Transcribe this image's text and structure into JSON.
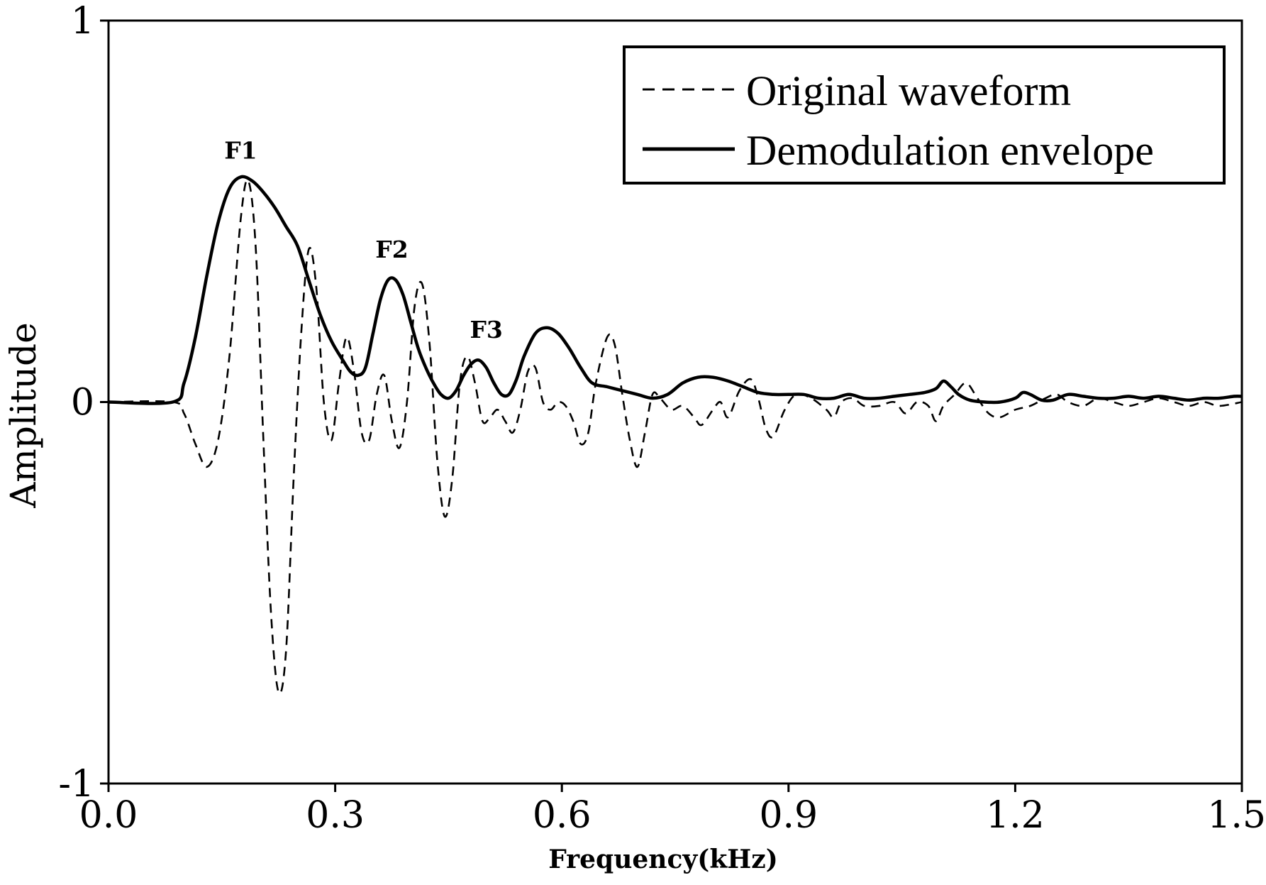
{
  "chart_data": {
    "type": "line",
    "title": "",
    "xlabel": "Frequency(kHz)",
    "ylabel": "Amplitude",
    "xlim": [
      0.0,
      1.5
    ],
    "ylim": [
      -1,
      1
    ],
    "xticks": [
      0.0,
      0.3,
      0.6,
      0.9,
      1.2,
      1.5
    ],
    "xtick_labels": [
      "0.0",
      "0.3",
      "0.6",
      "0.9",
      "1.2",
      "1.5"
    ],
    "yticks": [
      -1,
      0,
      1
    ],
    "ytick_labels": [
      "-1",
      "0",
      "1"
    ],
    "grid": false,
    "legend_position": "top-right",
    "series": [
      {
        "name": "Original waveform",
        "style": "dashed",
        "color": "#000000",
        "points": [
          [
            0.0,
            0
          ],
          [
            0.085,
            0
          ],
          [
            0.1,
            -0.03
          ],
          [
            0.115,
            -0.11
          ],
          [
            0.13,
            -0.17
          ],
          [
            0.145,
            -0.1
          ],
          [
            0.16,
            0.12
          ],
          [
            0.175,
            0.48
          ],
          [
            0.185,
            0.58
          ],
          [
            0.195,
            0.4
          ],
          [
            0.205,
            -0.1
          ],
          [
            0.215,
            -0.55
          ],
          [
            0.225,
            -0.76
          ],
          [
            0.235,
            -0.65
          ],
          [
            0.245,
            -0.2
          ],
          [
            0.255,
            0.18
          ],
          [
            0.265,
            0.4
          ],
          [
            0.275,
            0.3
          ],
          [
            0.285,
            0.0
          ],
          [
            0.295,
            -0.1
          ],
          [
            0.305,
            0.05
          ],
          [
            0.315,
            0.17
          ],
          [
            0.325,
            0.08
          ],
          [
            0.335,
            -0.08
          ],
          [
            0.345,
            -0.1
          ],
          [
            0.355,
            0.02
          ],
          [
            0.365,
            0.07
          ],
          [
            0.375,
            -0.05
          ],
          [
            0.385,
            -0.12
          ],
          [
            0.395,
            0.0
          ],
          [
            0.405,
            0.25
          ],
          [
            0.415,
            0.31
          ],
          [
            0.425,
            0.15
          ],
          [
            0.435,
            -0.15
          ],
          [
            0.445,
            -0.3
          ],
          [
            0.455,
            -0.2
          ],
          [
            0.465,
            0.05
          ],
          [
            0.475,
            0.12
          ],
          [
            0.485,
            0.05
          ],
          [
            0.495,
            -0.05
          ],
          [
            0.505,
            -0.04
          ],
          [
            0.515,
            -0.02
          ],
          [
            0.525,
            -0.05
          ],
          [
            0.535,
            -0.08
          ],
          [
            0.545,
            -0.02
          ],
          [
            0.555,
            0.08
          ],
          [
            0.565,
            0.09
          ],
          [
            0.575,
            0.0
          ],
          [
            0.585,
            -0.02
          ],
          [
            0.595,
            0.0
          ],
          [
            0.605,
            -0.01
          ],
          [
            0.615,
            -0.05
          ],
          [
            0.625,
            -0.11
          ],
          [
            0.635,
            -0.08
          ],
          [
            0.645,
            0.05
          ],
          [
            0.66,
            0.17
          ],
          [
            0.67,
            0.15
          ],
          [
            0.68,
            0.02
          ],
          [
            0.69,
            -0.1
          ],
          [
            0.7,
            -0.17
          ],
          [
            0.71,
            -0.08
          ],
          [
            0.72,
            0.02
          ],
          [
            0.73,
            0.01
          ],
          [
            0.745,
            -0.02
          ],
          [
            0.76,
            -0.01
          ],
          [
            0.775,
            -0.04
          ],
          [
            0.785,
            -0.06
          ],
          [
            0.8,
            -0.02
          ],
          [
            0.81,
            0.0
          ],
          [
            0.82,
            -0.04
          ],
          [
            0.835,
            0.03
          ],
          [
            0.85,
            0.06
          ],
          [
            0.86,
            0.01
          ],
          [
            0.87,
            -0.07
          ],
          [
            0.88,
            -0.09
          ],
          [
            0.895,
            -0.02
          ],
          [
            0.91,
            0.02
          ],
          [
            0.93,
            0.01
          ],
          [
            0.95,
            -0.02
          ],
          [
            0.96,
            -0.04
          ],
          [
            0.97,
            0.0
          ],
          [
            0.985,
            0.01
          ],
          [
            1.0,
            -0.01
          ],
          [
            1.02,
            -0.01
          ],
          [
            1.04,
            0.0
          ],
          [
            1.055,
            -0.03
          ],
          [
            1.07,
            0.0
          ],
          [
            1.085,
            -0.01
          ],
          [
            1.095,
            -0.05
          ],
          [
            1.105,
            -0.01
          ],
          [
            1.12,
            0.02
          ],
          [
            1.135,
            0.05
          ],
          [
            1.15,
            0.01
          ],
          [
            1.165,
            -0.03
          ],
          [
            1.18,
            -0.04
          ],
          [
            1.2,
            -0.02
          ],
          [
            1.22,
            -0.01
          ],
          [
            1.24,
            0.01
          ],
          [
            1.255,
            0.02
          ],
          [
            1.27,
            0.0
          ],
          [
            1.29,
            -0.01
          ],
          [
            1.31,
            0.01
          ],
          [
            1.33,
            0.0
          ],
          [
            1.35,
            -0.01
          ],
          [
            1.37,
            0.0
          ],
          [
            1.39,
            0.01
          ],
          [
            1.41,
            0.0
          ],
          [
            1.43,
            -0.01
          ],
          [
            1.45,
            0.0
          ],
          [
            1.47,
            -0.01
          ],
          [
            1.5,
            0.0
          ]
        ]
      },
      {
        "name": "Demodulation envelope",
        "style": "solid",
        "color": "#000000",
        "points": [
          [
            0.0,
            0
          ],
          [
            0.085,
            0
          ],
          [
            0.1,
            0.05
          ],
          [
            0.115,
            0.17
          ],
          [
            0.13,
            0.33
          ],
          [
            0.145,
            0.47
          ],
          [
            0.16,
            0.56
          ],
          [
            0.175,
            0.59
          ],
          [
            0.19,
            0.58
          ],
          [
            0.205,
            0.55
          ],
          [
            0.22,
            0.51
          ],
          [
            0.235,
            0.46
          ],
          [
            0.25,
            0.41
          ],
          [
            0.265,
            0.32
          ],
          [
            0.28,
            0.23
          ],
          [
            0.295,
            0.16
          ],
          [
            0.31,
            0.11
          ],
          [
            0.32,
            0.08
          ],
          [
            0.33,
            0.07
          ],
          [
            0.34,
            0.09
          ],
          [
            0.35,
            0.18
          ],
          [
            0.36,
            0.27
          ],
          [
            0.37,
            0.32
          ],
          [
            0.38,
            0.32
          ],
          [
            0.39,
            0.28
          ],
          [
            0.4,
            0.21
          ],
          [
            0.41,
            0.14
          ],
          [
            0.42,
            0.09
          ],
          [
            0.43,
            0.05
          ],
          [
            0.44,
            0.02
          ],
          [
            0.45,
            0.01
          ],
          [
            0.46,
            0.03
          ],
          [
            0.47,
            0.07
          ],
          [
            0.48,
            0.1
          ],
          [
            0.49,
            0.11
          ],
          [
            0.5,
            0.09
          ],
          [
            0.51,
            0.05
          ],
          [
            0.52,
            0.02
          ],
          [
            0.53,
            0.02
          ],
          [
            0.54,
            0.06
          ],
          [
            0.55,
            0.12
          ],
          [
            0.565,
            0.18
          ],
          [
            0.58,
            0.195
          ],
          [
            0.595,
            0.18
          ],
          [
            0.61,
            0.14
          ],
          [
            0.625,
            0.09
          ],
          [
            0.64,
            0.05
          ],
          [
            0.66,
            0.04
          ],
          [
            0.68,
            0.03
          ],
          [
            0.7,
            0.02
          ],
          [
            0.72,
            0.01
          ],
          [
            0.74,
            0.02
          ],
          [
            0.76,
            0.05
          ],
          [
            0.78,
            0.065
          ],
          [
            0.8,
            0.065
          ],
          [
            0.82,
            0.055
          ],
          [
            0.84,
            0.04
          ],
          [
            0.86,
            0.025
          ],
          [
            0.88,
            0.02
          ],
          [
            0.9,
            0.02
          ],
          [
            0.92,
            0.02
          ],
          [
            0.94,
            0.01
          ],
          [
            0.96,
            0.01
          ],
          [
            0.98,
            0.02
          ],
          [
            1.0,
            0.01
          ],
          [
            1.02,
            0.01
          ],
          [
            1.04,
            0.015
          ],
          [
            1.06,
            0.02
          ],
          [
            1.08,
            0.025
          ],
          [
            1.095,
            0.035
          ],
          [
            1.105,
            0.055
          ],
          [
            1.115,
            0.04
          ],
          [
            1.125,
            0.02
          ],
          [
            1.14,
            0.005
          ],
          [
            1.16,
            0.0
          ],
          [
            1.18,
            0.0
          ],
          [
            1.2,
            0.01
          ],
          [
            1.21,
            0.025
          ],
          [
            1.22,
            0.02
          ],
          [
            1.235,
            0.005
          ],
          [
            1.25,
            0.005
          ],
          [
            1.27,
            0.02
          ],
          [
            1.29,
            0.015
          ],
          [
            1.31,
            0.01
          ],
          [
            1.33,
            0.01
          ],
          [
            1.35,
            0.015
          ],
          [
            1.37,
            0.01
          ],
          [
            1.39,
            0.015
          ],
          [
            1.41,
            0.01
          ],
          [
            1.43,
            0.005
          ],
          [
            1.45,
            0.01
          ],
          [
            1.47,
            0.01
          ],
          [
            1.49,
            0.015
          ],
          [
            1.5,
            0.015
          ]
        ]
      }
    ],
    "annotations": [
      {
        "text": "F1",
        "x": 0.175,
        "y": 0.62
      },
      {
        "text": "F2",
        "x": 0.375,
        "y": 0.36
      },
      {
        "text": "F3",
        "x": 0.5,
        "y": 0.15
      }
    ]
  }
}
